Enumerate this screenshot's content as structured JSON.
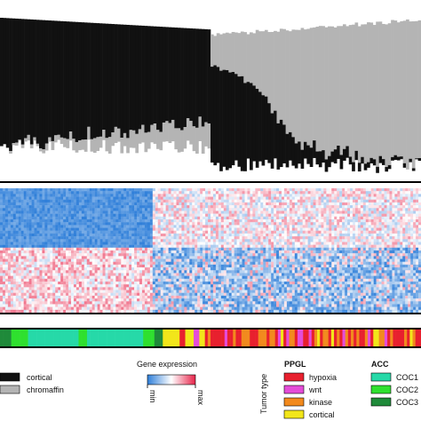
{
  "chart_data": [
    {
      "type": "bar",
      "description_of_series": "two-sided stacked proportion bars, one per sample, sorted",
      "series": [
        {
          "name": "cortical",
          "color": "#111111",
          "values": [
            1.0,
            0.99,
            0.98,
            0.97,
            0.96,
            0.95,
            0.94,
            0.93,
            0.92,
            0.91,
            0.9,
            0.89,
            0.88,
            0.87,
            0.86,
            0.85,
            0.84,
            0.83,
            0.82,
            0.81,
            0.8,
            0.78,
            0.76,
            0.73,
            0.7,
            0.65,
            0.6,
            0.5,
            0.4,
            0.3,
            0.2,
            0.15,
            0.12,
            0.1,
            0.09,
            0.08,
            0.07,
            0.06,
            0.05,
            0.04,
            0.03,
            0.02,
            0.01,
            0.0
          ]
        },
        {
          "name": "chromaffin",
          "color": "#b4b4b4",
          "values": [
            0.0,
            0.01,
            0.02,
            0.03,
            0.04,
            0.05,
            0.06,
            0.07,
            0.08,
            0.09,
            0.1,
            0.11,
            0.12,
            0.13,
            0.14,
            0.15,
            0.16,
            0.17,
            0.18,
            0.19,
            0.2,
            0.22,
            0.24,
            0.27,
            0.3,
            0.35,
            0.4,
            0.5,
            0.6,
            0.7,
            0.8,
            0.85,
            0.88,
            0.9,
            0.91,
            0.92,
            0.93,
            0.94,
            0.95,
            0.96,
            0.97,
            0.98,
            0.99,
            1.0
          ]
        }
      ]
    },
    {
      "type": "heatmap",
      "colorbar": {
        "title": "Gene expression",
        "min_label": "min",
        "max_label": "max",
        "min_color": "#2f7fd9",
        "mid_color": "#ffffff",
        "max_color": "#e8244a"
      }
    },
    {
      "type": "table",
      "tumor_type_label": "Tumor type",
      "groups": [
        {
          "name": "PPGL",
          "items": [
            {
              "label": "hypoxia",
              "color": "#e8202e"
            },
            {
              "label": "wnt",
              "color": "#e44cd8"
            },
            {
              "label": "kinase",
              "color": "#f28a1e"
            },
            {
              "label": "cortical",
              "color": "#f2e61a"
            }
          ]
        },
        {
          "name": "ACC",
          "items": [
            {
              "label": "COC1",
              "color": "#26d9a8"
            },
            {
              "label": "COC2",
              "color": "#2fe02f"
            },
            {
              "label": "COC3",
              "color": "#1f8a3a"
            }
          ]
        }
      ],
      "sample_track_order": [
        "COC3",
        "COC2",
        "COC1",
        "cortical",
        "hypoxia",
        "kinase",
        "wnt"
      ]
    }
  ],
  "legend_cell_type": [
    {
      "label": "cortical",
      "color": "#111111"
    },
    {
      "label": "chromaffin",
      "color": "#b4b4b4"
    }
  ],
  "labels": {
    "gene_expression": "Gene expression",
    "min": "min",
    "max": "max",
    "tumor_type": "Tumor type",
    "ppgl": "PPGL",
    "acc": "ACC"
  }
}
